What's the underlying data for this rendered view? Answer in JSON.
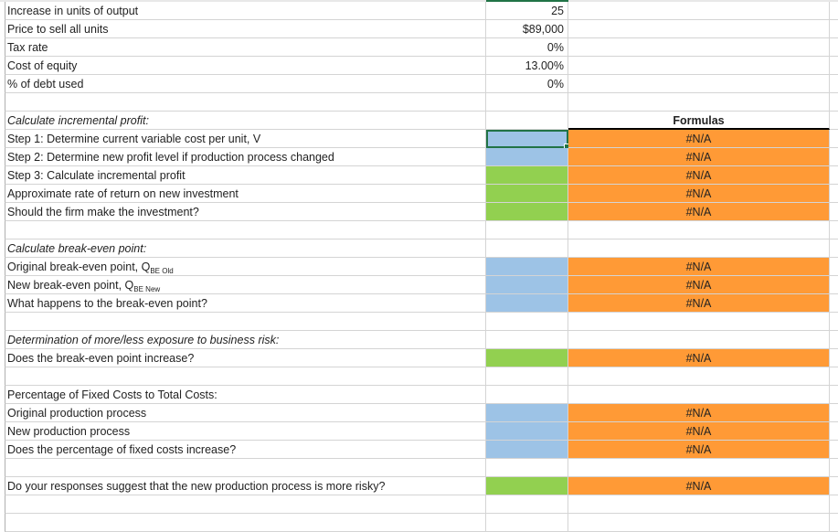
{
  "sheet": {
    "rows": [
      {
        "label": "Increase in units of output",
        "value": "25"
      },
      {
        "label": "Price to sell all units",
        "value": "$89,000"
      },
      {
        "label": "Tax rate",
        "value": "0%"
      },
      {
        "label": "Cost of equity",
        "value": "13.00%"
      },
      {
        "label": "% of debt used",
        "value": "0%"
      },
      {
        "label": ""
      },
      {
        "label": "Calculate incremental profit:",
        "italic": true,
        "formula": "Formulas",
        "header": true
      },
      {
        "label": "Step 1: Determine current variable cost per unit, V",
        "fill": "blue",
        "formula": "#N/A",
        "selected": true
      },
      {
        "label": "Step 2: Determine new profit level if production process changed",
        "fill": "blue",
        "formula": "#N/A"
      },
      {
        "label": "Step 3: Calculate incremental profit",
        "fill": "green",
        "formula": "#N/A"
      },
      {
        "label": "Approximate rate of return on new investment",
        "fill": "green",
        "formula": "#N/A"
      },
      {
        "label": "Should the firm make the investment?",
        "fill": "green",
        "formula": "#N/A"
      },
      {
        "label": ""
      },
      {
        "label": "Calculate break-even point:",
        "italic": true
      },
      {
        "label": "Original break-even point, Q",
        "sub": "BE Old",
        "fill": "blue",
        "formula": "#N/A"
      },
      {
        "label": "New break-even point, Q",
        "sub": "BE New",
        "fill": "blue",
        "formula": "#N/A"
      },
      {
        "label": "What happens to the break-even point?",
        "fill": "blue",
        "formula": "#N/A"
      },
      {
        "label": ""
      },
      {
        "label": "Determination of more/less exposure to business risk:",
        "italic": true
      },
      {
        "label": "Does the break-even point increase?",
        "fill": "green",
        "formula": "#N/A"
      },
      {
        "label": ""
      },
      {
        "label": "Percentage of Fixed Costs to Total Costs:"
      },
      {
        "label": "Original production process",
        "fill": "blue",
        "formula": "#N/A"
      },
      {
        "label": "New production process",
        "fill": "blue",
        "formula": "#N/A"
      },
      {
        "label": "Does the percentage of fixed costs increase?",
        "fill": "blue",
        "formula": "#N/A"
      },
      {
        "label": ""
      },
      {
        "label": "Do your responses suggest that the new production process is more risky?",
        "fill": "green",
        "formula": "#N/A"
      },
      {
        "label": ""
      },
      {
        "label": ""
      }
    ]
  },
  "colors": {
    "input_blue": "#9dc3e6",
    "answer_green": "#92d050",
    "formula_orange": "#ff9a36",
    "selection": "#217346"
  }
}
